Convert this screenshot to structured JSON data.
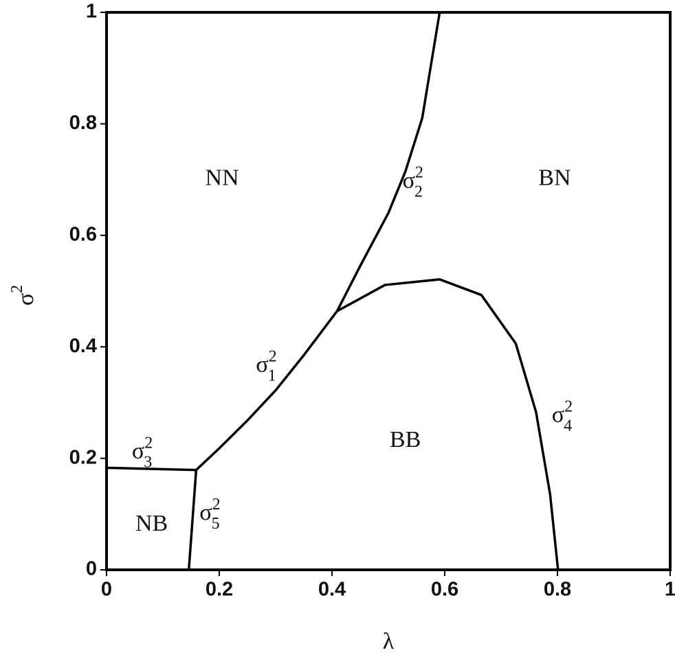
{
  "chart_data": {
    "type": "line",
    "xlabel": "λ",
    "ylabel": {
      "base": "σ",
      "sup": "2"
    },
    "xlim": [
      0,
      1
    ],
    "ylim": [
      0,
      1
    ],
    "xticks": [
      0,
      0.2,
      0.4,
      0.6,
      0.8,
      1
    ],
    "yticks": [
      0,
      0.2,
      0.4,
      0.6,
      0.8,
      1
    ],
    "series": [
      {
        "label": {
          "base": "σ",
          "sup": "2",
          "sub": "1",
          "x": 0.265,
          "y": 0.365
        },
        "color": "#000000",
        "x": [
          0.159,
          0.2,
          0.25,
          0.3,
          0.35,
          0.409
        ],
        "values": [
          0.179,
          0.218,
          0.268,
          0.322,
          0.385,
          0.464
        ]
      },
      {
        "label": {
          "base": "σ",
          "sup": "2",
          "sub": "2",
          "x": 0.525,
          "y": 0.695
        },
        "color": "#000000",
        "x": [
          0.409,
          0.45,
          0.5,
          0.53,
          0.56,
          0.591
        ],
        "values": [
          0.464,
          0.545,
          0.64,
          0.714,
          0.81,
          1
        ]
      },
      {
        "label": {
          "base": "σ",
          "sup": "2",
          "sub": "3",
          "x": 0.045,
          "y": 0.21
        },
        "color": "#000000",
        "x": [
          0,
          0.159
        ],
        "values": [
          0.183,
          0.179
        ]
      },
      {
        "label": {
          "base": "σ",
          "sup": "2",
          "sub": "4",
          "x": 0.79,
          "y": 0.275
        },
        "color": "#000000",
        "x": [
          0.409,
          0.494,
          0.591,
          0.665,
          0.726,
          0.762,
          0.787,
          0.801
        ],
        "values": [
          0.464,
          0.511,
          0.521,
          0.493,
          0.406,
          0.283,
          0.135,
          0
        ]
      },
      {
        "label": {
          "base": "σ",
          "sup": "2",
          "sub": "5",
          "x": 0.165,
          "y": 0.1
        },
        "color": "#000000",
        "x": [
          0.159,
          0.146
        ],
        "values": [
          0.179,
          0
        ]
      }
    ],
    "regions": [
      {
        "text": "NN",
        "x": 0.205,
        "y": 0.7
      },
      {
        "text": "BN",
        "x": 0.795,
        "y": 0.7
      },
      {
        "text": "BB",
        "x": 0.53,
        "y": 0.23
      },
      {
        "text": "NB",
        "x": 0.08,
        "y": 0.08
      }
    ]
  }
}
